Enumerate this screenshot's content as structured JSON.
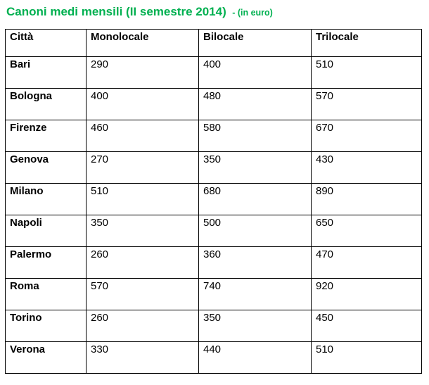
{
  "title": {
    "main": "Canoni medi mensili (II semestre 2014)",
    "suffix": "- (in euro)"
  },
  "accent_color": "#00B050",
  "table": {
    "columns": [
      "Città",
      "Monolocale",
      "Bilocale",
      "Trilocale"
    ],
    "rows": [
      {
        "city": "Bari",
        "values": [
          "290",
          "400",
          "510"
        ]
      },
      {
        "city": "Bologna",
        "values": [
          "400",
          "480",
          "570"
        ]
      },
      {
        "city": "Firenze",
        "values": [
          "460",
          "580",
          "670"
        ]
      },
      {
        "city": "Genova",
        "values": [
          "270",
          "350",
          "430"
        ]
      },
      {
        "city": "Milano",
        "values": [
          "510",
          "680",
          "890"
        ]
      },
      {
        "city": "Napoli",
        "values": [
          "350",
          "500",
          "650"
        ]
      },
      {
        "city": "Palermo",
        "values": [
          "260",
          "360",
          "470"
        ]
      },
      {
        "city": "Roma",
        "values": [
          "570",
          "740",
          "920"
        ]
      },
      {
        "city": "Torino",
        "values": [
          "260",
          "350",
          "450"
        ]
      },
      {
        "city": "Verona",
        "values": [
          "330",
          "440",
          "510"
        ]
      }
    ]
  }
}
